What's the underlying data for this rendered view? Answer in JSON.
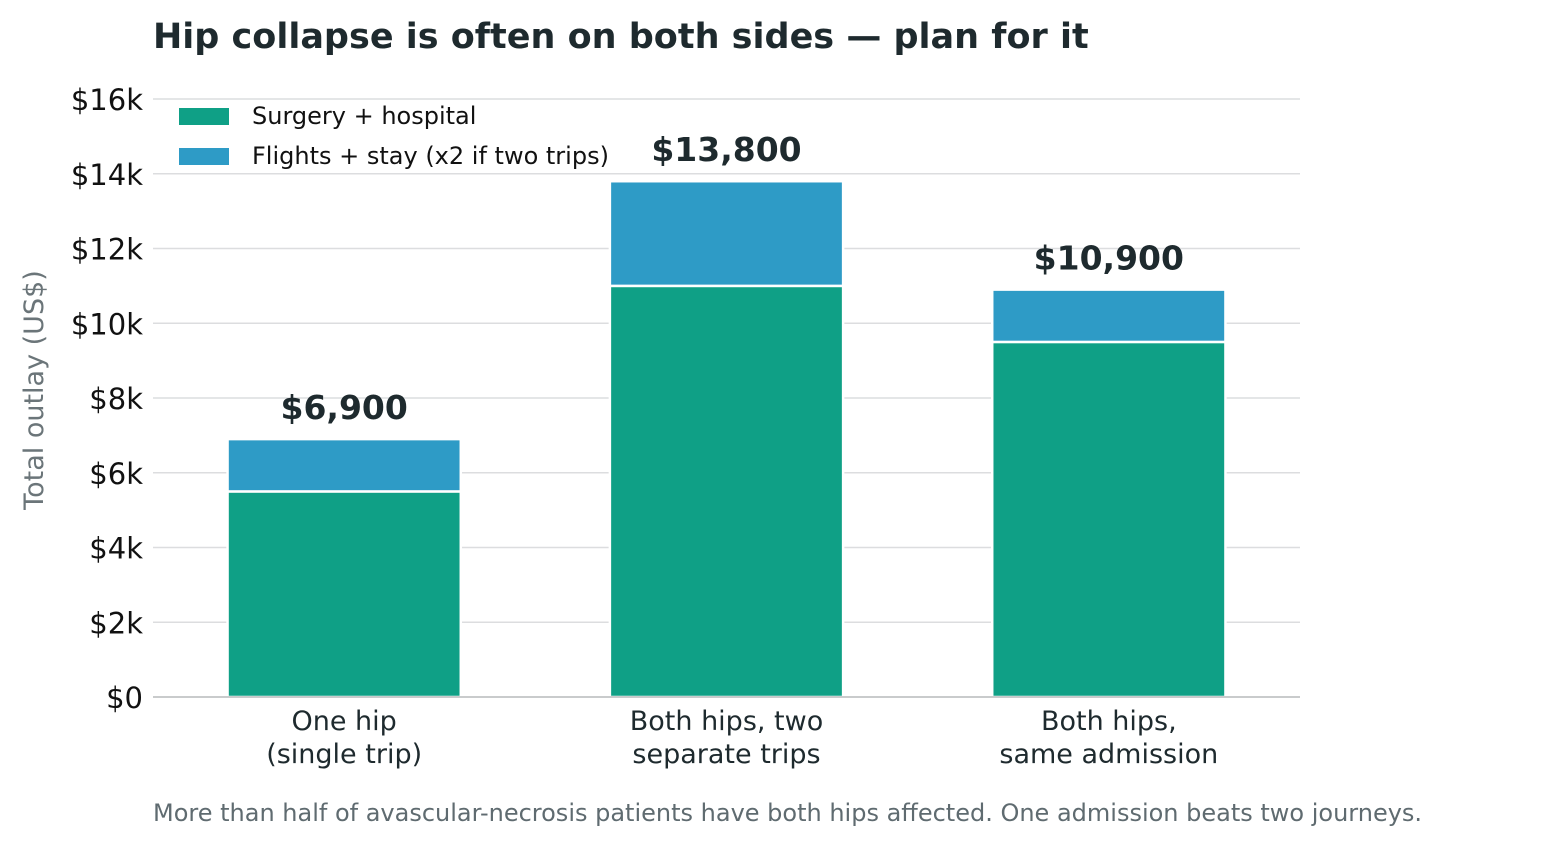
{
  "chart_data": {
    "type": "bar",
    "stacked": true,
    "title": "Hip collapse is often on both sides — plan for it",
    "ylabel": "Total outlay (US$)",
    "xlabel": "",
    "ylim": [
      0,
      16000
    ],
    "yticks": [
      0,
      2000,
      4000,
      6000,
      8000,
      10000,
      12000,
      14000,
      16000
    ],
    "ytick_labels": [
      "$0",
      "$2k",
      "$4k",
      "$6k",
      "$8k",
      "$10k",
      "$12k",
      "$14k",
      "$16k"
    ],
    "categories": [
      [
        "One hip",
        "(single trip)"
      ],
      [
        "Both hips, two",
        "separate trips"
      ],
      [
        "Both hips,",
        "same admission"
      ]
    ],
    "series": [
      {
        "name": "Surgery + hospital",
        "color": "#0fa086",
        "values": [
          5500,
          11000,
          9500
        ]
      },
      {
        "name": "Flights + stay (x2 if two trips)",
        "color": "#2e9bc6",
        "values": [
          1400,
          2800,
          1400
        ]
      }
    ],
    "totals": [
      6900,
      13800,
      10900
    ],
    "total_labels": [
      "$6,900",
      "$13,800",
      "$10,900"
    ],
    "grid": "horizontal",
    "legend_position": "top-left",
    "footnote": "More than half of avascular-necrosis patients have both hips affected. One admission beats two journeys."
  }
}
